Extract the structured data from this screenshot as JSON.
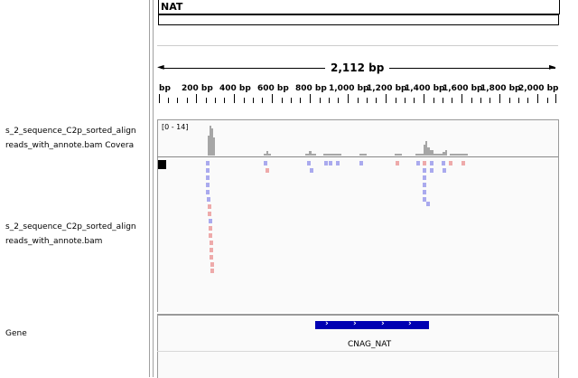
{
  "header": {
    "chromosome": "NAT",
    "span_label": "2,112 bp",
    "arrow_left": "◄",
    "arrow_right": "►",
    "ticks": [
      "bp",
      "200 bp",
      "400 bp",
      "600 bp",
      "800 bp",
      "1,000 bp",
      "1,200 bp",
      "1,400 bp",
      "1,600 bp",
      "1,800 bp",
      "2,000 bp"
    ]
  },
  "tracks": {
    "coverage": {
      "label_line1": "s_2_sequence_C2p_sorted_align",
      "label_line2": "reads_with_annote.bam Covera",
      "range": "[0 - 14]"
    },
    "alignment": {
      "label_line1": "s_2_sequence_C2p_sorted_align",
      "label_line2": "reads_with_annote.bam"
    },
    "gene": {
      "label": "Gene",
      "feature_name": "CNAG_NAT",
      "chevron": "›"
    }
  },
  "colors": {
    "forward_read": "#aaaaee",
    "reverse_read": "#eeaaaa",
    "coverage": "#a6a6a6",
    "gene_feature": "#0000b2"
  }
}
